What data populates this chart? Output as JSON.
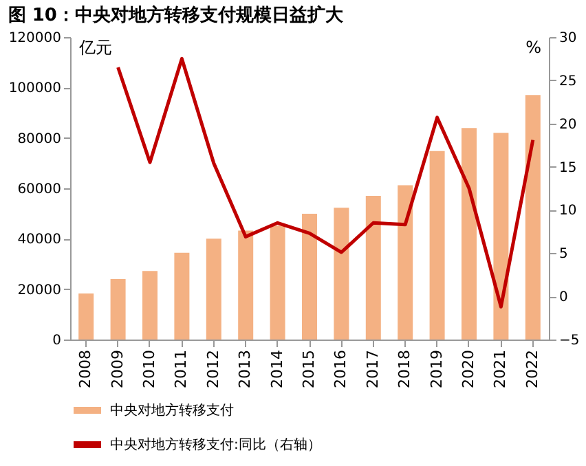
{
  "chart_data": {
    "type": "bar",
    "title": "图 10：中央对地方转移支付规模日益扩大",
    "categories": [
      "2008",
      "2009",
      "2010",
      "2011",
      "2012",
      "2013",
      "2014",
      "2015",
      "2016",
      "2017",
      "2018",
      "2019",
      "2020",
      "2021",
      "2022"
    ],
    "series": [
      {
        "name": "中央对地方转移支付",
        "color": "#f4b183",
        "values": [
          18300,
          24000,
          27200,
          34400,
          40000,
          43200,
          45200,
          49900,
          52300,
          57000,
          61200,
          74800,
          83900,
          82000,
          97000
        ]
      },
      {
        "name": "中央对地方转移支付:同比（右轴）",
        "type": "line",
        "axis": "y2",
        "color": "#c00000",
        "values": [
          null,
          26.5,
          15.5,
          27.5,
          15.4,
          6.9,
          8.5,
          7.3,
          5.1,
          8.5,
          8.3,
          20.7,
          12.5,
          -1.2,
          18.1
        ]
      }
    ],
    "ylabel": "亿元",
    "y2label": "%",
    "ylim": [
      0,
      120000
    ],
    "yticks": [
      0,
      20000,
      40000,
      60000,
      80000,
      100000,
      120000
    ],
    "y2lim": [
      -5,
      30
    ],
    "y2ticks": [
      -5,
      0,
      5,
      10,
      15,
      20,
      25,
      30
    ],
    "legend": "bottom",
    "grid": false
  }
}
